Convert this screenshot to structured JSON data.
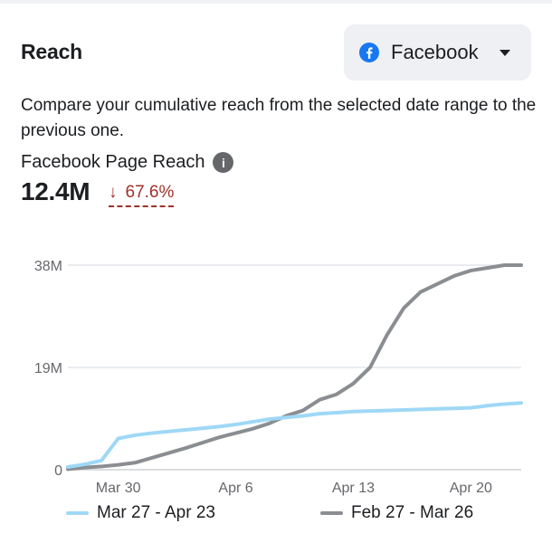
{
  "card": {
    "title": "Reach",
    "platform_selector": {
      "label": "Facebook",
      "icon": "facebook-icon",
      "dropdown_icon": "caret-down-icon"
    },
    "description": "Compare your cumulative reach from the selected date range to the previous one.",
    "metric": {
      "label": "Facebook Page Reach",
      "info_icon": "info-icon",
      "value": "12.4M",
      "change": "67.6%",
      "change_direction": "down",
      "change_color": "#a0312a"
    }
  },
  "chart_data": {
    "type": "line",
    "title": "",
    "xlabel": "",
    "ylabel": "",
    "y_ticks": [
      "38M",
      "19M",
      "0"
    ],
    "ylim": [
      0,
      38
    ],
    "y_unit": "M",
    "x_ticks": [
      "Mar 30",
      "Apr 6",
      "Apr 13",
      "Apr 20"
    ],
    "grid": true,
    "legend_position": "bottom",
    "x": [
      1,
      2,
      3,
      4,
      5,
      6,
      7,
      8,
      9,
      10,
      11,
      12,
      13,
      14,
      15,
      16,
      17,
      18,
      19,
      20,
      21,
      22,
      23,
      24,
      25,
      26,
      27,
      28
    ],
    "series": [
      {
        "name": "Mar 27 - Apr 23",
        "color": "#9fd8f6",
        "values": [
          0.5,
          1.0,
          1.7,
          5.8,
          6.4,
          6.8,
          7.1,
          7.4,
          7.7,
          8.0,
          8.4,
          8.9,
          9.4,
          9.7,
          10.0,
          10.4,
          10.6,
          10.8,
          10.9,
          11.0,
          11.1,
          11.2,
          11.3,
          11.4,
          11.5,
          11.9,
          12.2,
          12.4
        ]
      },
      {
        "name": "Feb 27 - Mar 26",
        "color": "#8a8d91",
        "values": [
          0.1,
          0.4,
          0.6,
          0.9,
          1.3,
          2.2,
          3.1,
          4.0,
          5.0,
          6.0,
          6.8,
          7.6,
          8.6,
          10.0,
          11.0,
          13.0,
          14.0,
          16.0,
          19.0,
          25.0,
          30.0,
          33.0,
          34.5,
          36.0,
          37.0,
          37.5,
          38.0,
          38.0
        ]
      }
    ]
  }
}
